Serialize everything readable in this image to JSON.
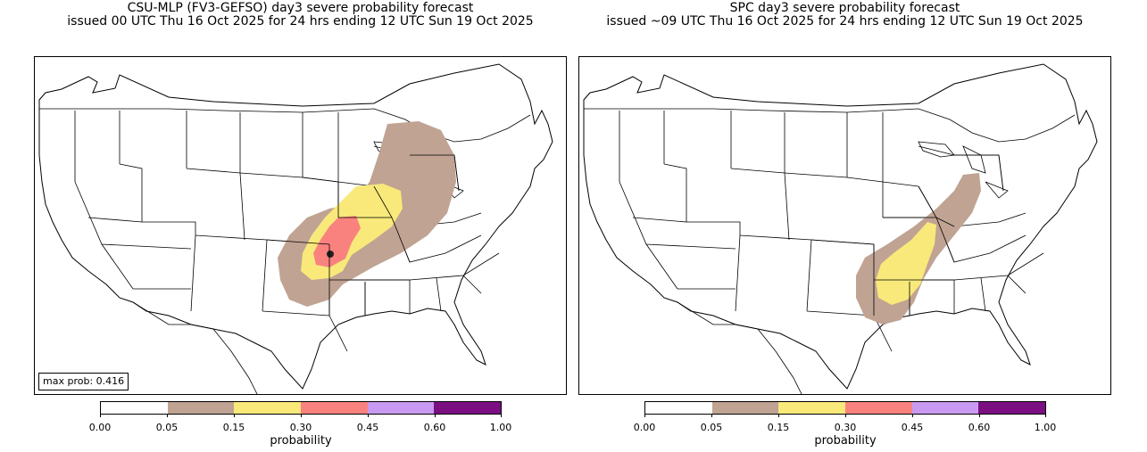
{
  "panels": [
    {
      "title_line1": "CSU-MLP (FV3-GEFSO) day3 severe probability forecast",
      "title_line2": "issued 00 UTC Thu 16 Oct 2025 for 24 hrs ending 12 UTC Sun 19 Oct 2025",
      "max_prob_text": "max prob: 0.416"
    },
    {
      "title_line1": "SPC day3 severe probability forecast",
      "title_line2": "issued ~09 UTC Thu 16 Oct 2025 for 24 hrs ending 12 UTC Sun 19 Oct 2025"
    }
  ],
  "colorbar": {
    "label": "probability",
    "ticks": [
      "0.00",
      "0.05",
      "0.15",
      "0.30",
      "0.45",
      "0.60",
      "1.00"
    ],
    "colors": [
      "#ffffff",
      "#c0a393",
      "#f8e97a",
      "#f9827f",
      "#c99af1",
      "#7b0f82"
    ]
  },
  "prob_colors": {
    "p05": "#c0a393",
    "p15": "#f8e97a",
    "p30": "#f9827f",
    "max_dot": "#222222"
  }
}
